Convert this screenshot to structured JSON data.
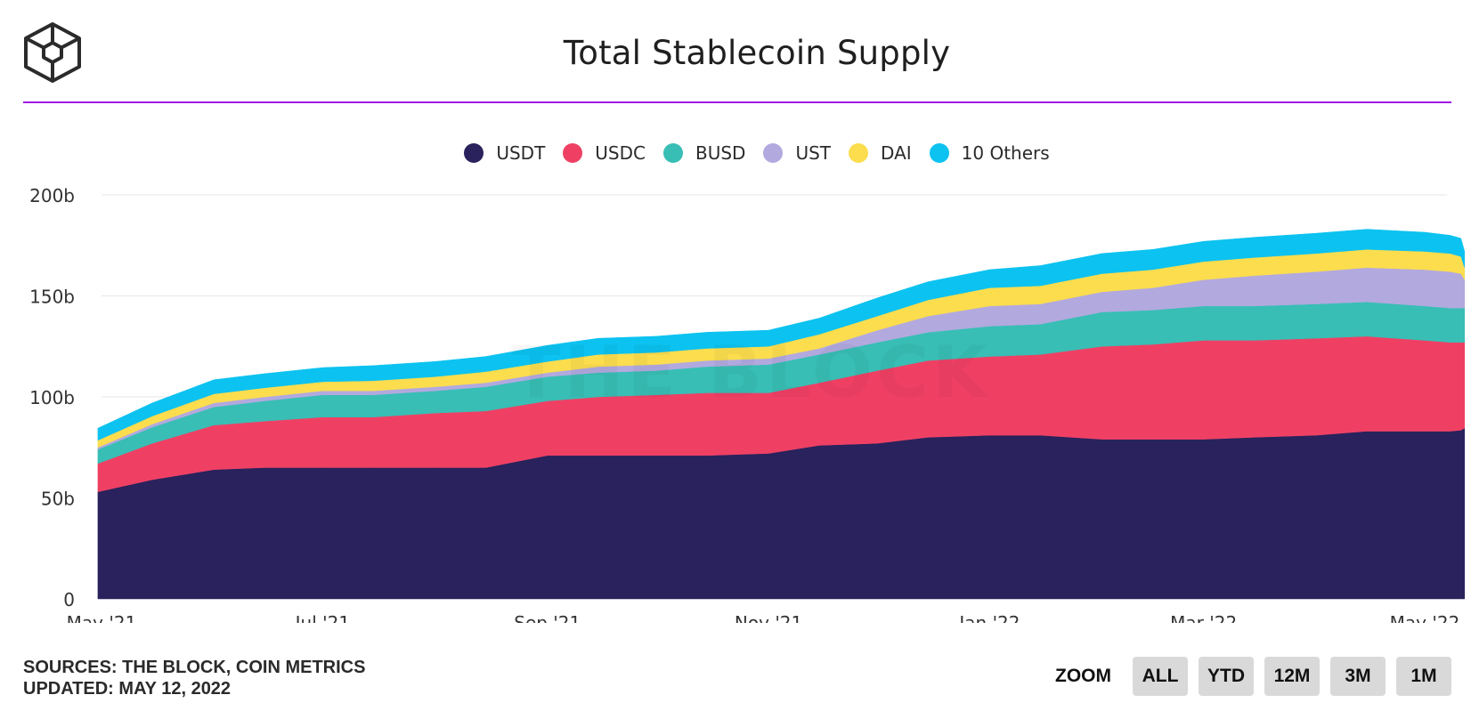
{
  "chart_data": {
    "type": "area",
    "stacked": true,
    "title": "Total Stablecoin Supply",
    "ylim": [
      0,
      200
    ],
    "y_ticks": [
      "0",
      "50b",
      "100b",
      "150b",
      "200b"
    ],
    "x_ticks": [
      "May '21",
      "Jul '21",
      "Sep '21",
      "Nov '21",
      "Jan '22",
      "Mar '22",
      "May '22"
    ],
    "x_tick_dates": [
      "2021-05-01",
      "2021-07-01",
      "2021-09-01",
      "2021-11-01",
      "2022-01-01",
      "2022-03-01",
      "2022-05-01"
    ],
    "grid": true,
    "legend_position": "top-center",
    "dates": [
      "2021-04-30",
      "2021-05-15",
      "2021-06-01",
      "2021-06-15",
      "2021-07-01",
      "2021-07-15",
      "2021-08-01",
      "2021-08-15",
      "2021-09-01",
      "2021-09-15",
      "2021-10-01",
      "2021-10-15",
      "2021-11-01",
      "2021-11-15",
      "2021-12-01",
      "2021-12-15",
      "2022-01-01",
      "2022-01-15",
      "2022-02-01",
      "2022-02-15",
      "2022-03-01",
      "2022-03-15",
      "2022-04-01",
      "2022-04-15",
      "2022-05-01",
      "2022-05-08",
      "2022-05-11",
      "2022-05-12"
    ],
    "series": [
      {
        "name": "USDT",
        "color": "#29225c",
        "values": [
          53,
          59,
          64,
          65,
          65,
          65,
          65,
          65,
          71,
          71,
          71,
          71,
          72,
          76,
          77,
          80,
          81,
          81,
          79,
          79,
          79,
          80,
          81,
          83,
          83,
          83,
          83.5,
          84.5
        ]
      },
      {
        "name": "USDC",
        "color": "#ef4064",
        "values": [
          14,
          18,
          22,
          23,
          25,
          25,
          27,
          28,
          27,
          29,
          30,
          31,
          30,
          31,
          36,
          38,
          39,
          40,
          46,
          47,
          49,
          48,
          48,
          47,
          45,
          44,
          43.5,
          42.5
        ]
      },
      {
        "name": "BUSD",
        "color": "#38beb5",
        "values": [
          7,
          8,
          9,
          10,
          11,
          11,
          11,
          12,
          12,
          12,
          12,
          13,
          14,
          14,
          14,
          14,
          15,
          15,
          17,
          17,
          17,
          17,
          17,
          17,
          17,
          17,
          17,
          17
        ]
      },
      {
        "name": "UST",
        "color": "#b2a9df",
        "values": [
          1,
          1.5,
          2,
          2,
          2,
          2,
          2,
          2,
          2,
          3,
          3,
          3,
          3,
          3,
          6,
          8,
          10,
          10,
          10,
          11,
          13,
          15,
          16,
          17,
          18,
          18,
          17,
          14
        ]
      },
      {
        "name": "DAI",
        "color": "#fbdd4e",
        "values": [
          3.5,
          4,
          4.5,
          4.5,
          4.5,
          5,
          5,
          5.5,
          5.5,
          6,
          6,
          6,
          6,
          7,
          7,
          8,
          9,
          9,
          9,
          9,
          9,
          9,
          9,
          9,
          9,
          9,
          8.5,
          6
        ]
      },
      {
        "name": "10 Others",
        "color": "#0cc2f0",
        "values": [
          6,
          6.5,
          7,
          7,
          7,
          7.5,
          7.5,
          7.5,
          8,
          8,
          8,
          8,
          8,
          8,
          9,
          9,
          9,
          10,
          10,
          10,
          10,
          10,
          10,
          10,
          9.5,
          9,
          9,
          8
        ]
      }
    ]
  },
  "legend": [
    {
      "label": "USDT",
      "color": "#29225c"
    },
    {
      "label": "USDC",
      "color": "#ef4064"
    },
    {
      "label": "BUSD",
      "color": "#38beb5"
    },
    {
      "label": "UST",
      "color": "#b2a9df"
    },
    {
      "label": "DAI",
      "color": "#fbdd4e"
    },
    {
      "label": "10 Others",
      "color": "#0cc2f0"
    }
  ],
  "watermark": "THE BLOCK",
  "footer": {
    "sources": "SOURCES: THE BLOCK, COIN METRICS",
    "updated": "UPDATED: MAY 12, 2022"
  },
  "zoom": {
    "label": "ZOOM",
    "buttons": [
      "ALL",
      "YTD",
      "12M",
      "3M",
      "1M"
    ]
  },
  "colors": {
    "accent_rule": "#9f19e6",
    "gridline": "#e6e6e6"
  },
  "logo_icon": "the-block-cube-logo-icon"
}
